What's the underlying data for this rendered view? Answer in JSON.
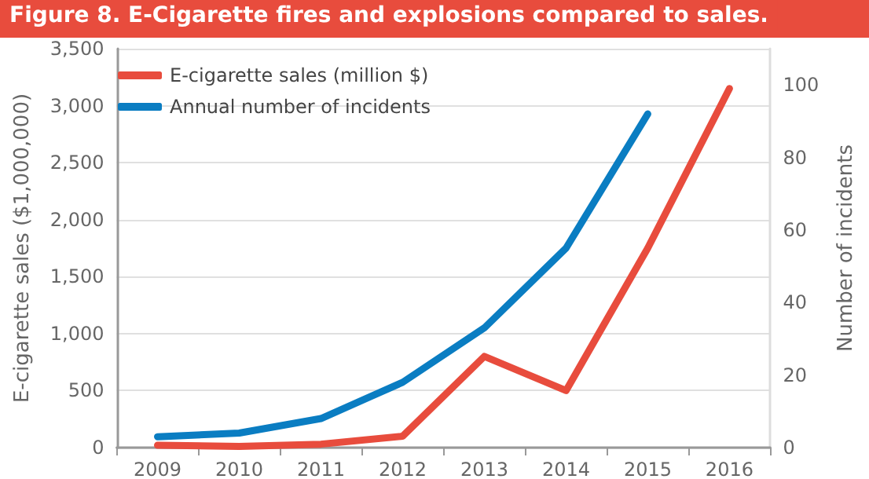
{
  "chart_data": {
    "type": "line",
    "title": "Figure 8. E-Cigarette fires and explosions compared to sales.",
    "categories": [
      "2009",
      "2010",
      "2011",
      "2012",
      "2013",
      "2014",
      "2015",
      "2016"
    ],
    "series": [
      {
        "name": "E-cigarette sales (million $)",
        "color": "#e84c3d",
        "values": [
          20,
          10,
          30,
          100,
          800,
          500,
          1750,
          3150
        ]
      },
      {
        "name": "Annual number of incidents",
        "color": "#0a7dc2",
        "axis": "y2",
        "values": [
          3,
          4,
          8,
          18,
          33,
          55,
          92,
          null
        ]
      }
    ],
    "ylabel": "E-cigarette sales ($1,000,000)",
    "y2label": "Number of incidents",
    "ylim": [
      0,
      3500
    ],
    "yticks": [
      0,
      {
        "value": 500,
        "label": "500"
      },
      {
        "value": 1000,
        "label": "1,000"
      },
      {
        "value": 1500,
        "label": "1,500"
      },
      {
        "value": 2000,
        "label": "2,000"
      },
      {
        "value": 2500,
        "label": "2,500"
      },
      {
        "value": 3000,
        "label": "3,000"
      },
      {
        "value": 3500,
        "label": "3,500"
      }
    ],
    "y2lim": [
      0,
      110
    ],
    "y2ticks": [
      0,
      20,
      40,
      60,
      80,
      100
    ],
    "grid": "y",
    "legend": "top left",
    "marker": "none",
    "line_style": "solid"
  }
}
